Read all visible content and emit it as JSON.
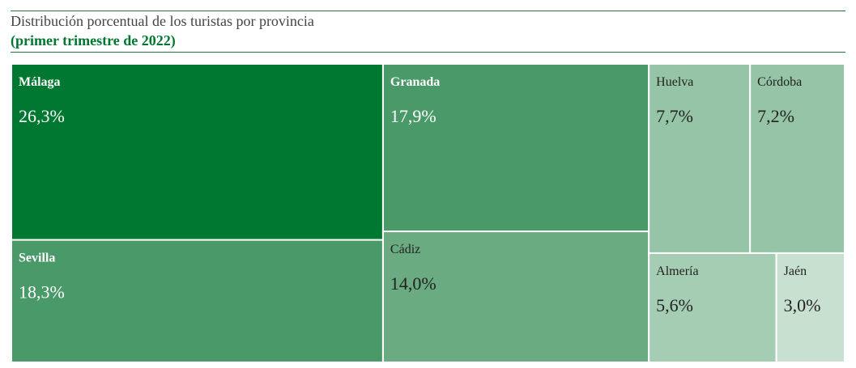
{
  "header": {
    "title": "Distribución porcentual de los turistas por provincia",
    "subtitle": "(primer trimestre de 2022)"
  },
  "chart_data": {
    "type": "treemap",
    "title": "Distribución porcentual de los turistas por provincia",
    "subtitle": "(primer trimestre de 2022)",
    "unit": "%",
    "items": [
      {
        "name": "Málaga",
        "value": 26.3,
        "label": "26,3%",
        "color": "#007831",
        "text_color": "#ffffff"
      },
      {
        "name": "Sevilla",
        "value": 18.3,
        "label": "18,3%",
        "color": "#4a9a69",
        "text_color": "#ffffff"
      },
      {
        "name": "Granada",
        "value": 17.9,
        "label": "17,9%",
        "color": "#4a9a69",
        "text_color": "#ffffff"
      },
      {
        "name": "Cádiz",
        "value": 14.0,
        "label": "14,0%",
        "color": "#6aab82",
        "text_color": "#222222"
      },
      {
        "name": "Huelva",
        "value": 7.7,
        "label": "7,7%",
        "color": "#95c4a6",
        "text_color": "#222222"
      },
      {
        "name": "Córdoba",
        "value": 7.2,
        "label": "7,2%",
        "color": "#95c4a6",
        "text_color": "#222222"
      },
      {
        "name": "Almería",
        "value": 5.6,
        "label": "5,6%",
        "color": "#a5cdb3",
        "text_color": "#222222"
      },
      {
        "name": "Jaén",
        "value": 3.0,
        "label": "3,0%",
        "color": "#c8e0d0",
        "text_color": "#222222"
      }
    ]
  }
}
